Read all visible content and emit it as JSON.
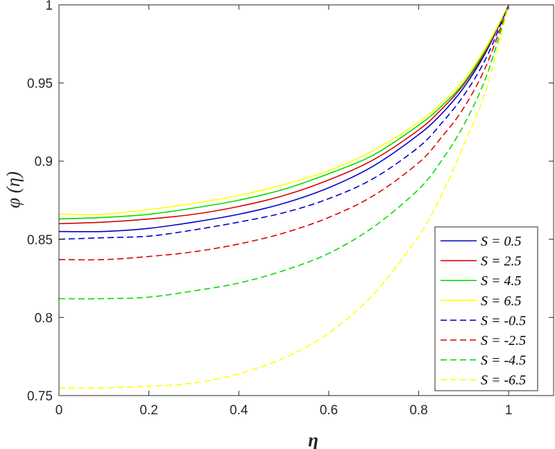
{
  "chart_data": {
    "type": "line",
    "xlabel": "η",
    "ylabel": "φ (η)",
    "xlim": [
      0,
      1.1
    ],
    "ylim": [
      0.75,
      1
    ],
    "x_ticks": [
      "0",
      "0.2",
      "0.4",
      "0.6",
      "0.8",
      "1"
    ],
    "y_ticks": [
      "0.75",
      "0.8",
      "0.85",
      "0.9",
      "0.95",
      "1"
    ],
    "legend_position": "bottom-right",
    "grid": false,
    "x": [
      0,
      0.1,
      0.2,
      0.3,
      0.4,
      0.5,
      0.6,
      0.7,
      0.8,
      0.85,
      0.9,
      0.95,
      1.0
    ],
    "series": [
      {
        "name": "S = 0.5",
        "color": "#0000cc",
        "style": "solid",
        "values": [
          0.855,
          0.855,
          0.857,
          0.861,
          0.866,
          0.873,
          0.883,
          0.897,
          0.917,
          0.93,
          0.947,
          0.97,
          1.0
        ]
      },
      {
        "name": "S = 2.5",
        "color": "#dd0000",
        "style": "solid",
        "values": [
          0.86,
          0.861,
          0.863,
          0.866,
          0.871,
          0.878,
          0.888,
          0.901,
          0.92,
          0.933,
          0.949,
          0.971,
          1.0
        ]
      },
      {
        "name": "S = 4.5",
        "color": "#00dd00",
        "style": "solid",
        "values": [
          0.863,
          0.864,
          0.866,
          0.87,
          0.875,
          0.882,
          0.892,
          0.904,
          0.923,
          0.935,
          0.95,
          0.972,
          1.0
        ]
      },
      {
        "name": "S = 6.5",
        "color": "#ffff00",
        "style": "solid",
        "values": [
          0.866,
          0.866,
          0.869,
          0.873,
          0.878,
          0.885,
          0.894,
          0.907,
          0.925,
          0.937,
          0.952,
          0.973,
          1.0
        ]
      },
      {
        "name": "S = -0.5",
        "color": "#0000cc",
        "style": "dashed",
        "values": [
          0.85,
          0.851,
          0.852,
          0.856,
          0.861,
          0.867,
          0.876,
          0.889,
          0.909,
          0.924,
          0.942,
          0.966,
          1.0
        ]
      },
      {
        "name": "S = -2.5",
        "color": "#dd0000",
        "style": "dashed",
        "values": [
          0.837,
          0.837,
          0.839,
          0.842,
          0.847,
          0.854,
          0.864,
          0.878,
          0.899,
          0.915,
          0.934,
          0.961,
          1.0
        ]
      },
      {
        "name": "S = -4.5",
        "color": "#00dd00",
        "style": "dashed",
        "values": [
          0.812,
          0.812,
          0.813,
          0.817,
          0.822,
          0.83,
          0.841,
          0.858,
          0.882,
          0.9,
          0.923,
          0.954,
          1.0
        ]
      },
      {
        "name": "S = -6.5",
        "color": "#ffff00",
        "style": "dashed",
        "values": [
          0.755,
          0.755,
          0.756,
          0.758,
          0.764,
          0.774,
          0.79,
          0.815,
          0.852,
          0.878,
          0.91,
          0.946,
          1.0
        ]
      }
    ]
  }
}
